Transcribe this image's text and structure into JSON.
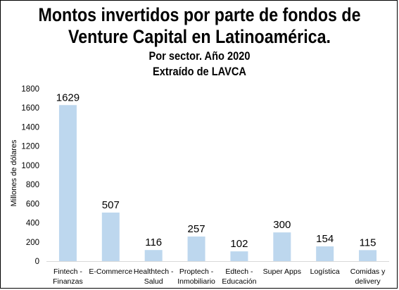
{
  "chart_data": {
    "type": "bar",
    "title_lines": [
      "Montos invertidos por parte de fondos de",
      "Venture Capital en Latinoamérica."
    ],
    "subtitle_lines": [
      "Por sector. Año 2020",
      "Extraído de LAVCA"
    ],
    "ylabel": "Millones de dólares",
    "xlabel": "",
    "ylim": [
      0,
      1800
    ],
    "yticks": [
      "0",
      "200",
      "400",
      "600",
      "800",
      "1000",
      "1200",
      "1400",
      "1600",
      "1800"
    ],
    "categories": [
      [
        "Fintech -",
        "Finanzas"
      ],
      [
        "E-Commerce"
      ],
      [
        "Healthtech -",
        "Salud"
      ],
      [
        "Proptech -",
        "Inmobiliario"
      ],
      [
        "Edtech -",
        "Educación"
      ],
      [
        "Super Apps"
      ],
      [
        "Logística"
      ],
      [
        "Comidas y",
        "delivery"
      ]
    ],
    "values": [
      1629,
      507,
      116,
      257,
      102,
      300,
      154,
      115
    ],
    "data_labels": [
      "1629",
      "507",
      "116",
      "257",
      "102",
      "300",
      "154",
      "115"
    ],
    "grid": false,
    "legend": "none",
    "bar_color": "#bdd7ee"
  }
}
